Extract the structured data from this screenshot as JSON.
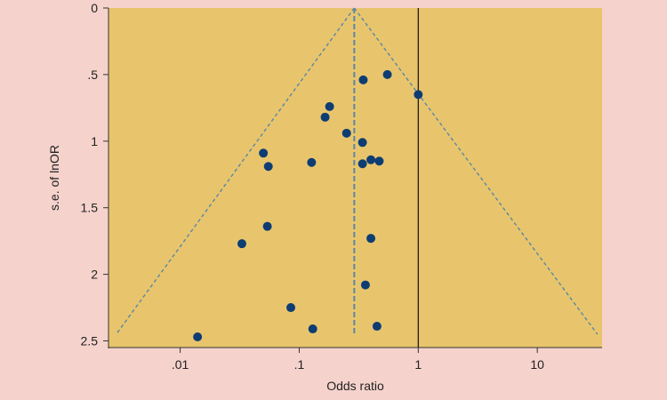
{
  "colors": {
    "page_background": "#f5d3cc",
    "plot_background": "#e8c56c",
    "marker": "#0d3d73",
    "funnel_line": "#5b87a6",
    "reference_line": "#111111",
    "axis": "#333333"
  },
  "chart_data": {
    "type": "scatter",
    "xlabel": "Odds ratio",
    "ylabel": "s.e. of lnOR",
    "x_scale": "log",
    "y_inverted": true,
    "xlim": [
      0.0025,
      35
    ],
    "ylim": [
      0,
      2.55
    ],
    "x_ticks": [
      {
        "value": 0.01,
        "label": ".01"
      },
      {
        "value": 0.1,
        "label": ".1"
      },
      {
        "value": 1,
        "label": "1"
      },
      {
        "value": 10,
        "label": "10"
      }
    ],
    "y_ticks": [
      {
        "value": 0,
        "label": "0"
      },
      {
        "value": 0.5,
        "label": ".5"
      },
      {
        "value": 1,
        "label": "1"
      },
      {
        "value": 1.5,
        "label": "1.5"
      },
      {
        "value": 2,
        "label": "2"
      },
      {
        "value": 2.5,
        "label": "2.5"
      }
    ],
    "grid": false,
    "legend": "none",
    "reference_line_x": 1,
    "pooled_estimate_x": 0.29,
    "funnel": {
      "apex": {
        "x": 0.29,
        "y": 0
      },
      "base_left": {
        "x": 0.0029,
        "y": 2.45
      },
      "base_right": {
        "x": 32,
        "y": 2.45
      }
    },
    "points": [
      {
        "x": 0.55,
        "y": 0.5
      },
      {
        "x": 0.345,
        "y": 0.54
      },
      {
        "x": 1.0,
        "y": 0.65
      },
      {
        "x": 0.18,
        "y": 0.74
      },
      {
        "x": 0.165,
        "y": 0.82
      },
      {
        "x": 0.25,
        "y": 0.94
      },
      {
        "x": 0.34,
        "y": 1.01
      },
      {
        "x": 0.05,
        "y": 1.09
      },
      {
        "x": 0.127,
        "y": 1.16
      },
      {
        "x": 0.055,
        "y": 1.19
      },
      {
        "x": 0.34,
        "y": 1.17
      },
      {
        "x": 0.4,
        "y": 1.14
      },
      {
        "x": 0.47,
        "y": 1.15
      },
      {
        "x": 0.054,
        "y": 1.64
      },
      {
        "x": 0.4,
        "y": 1.73
      },
      {
        "x": 0.033,
        "y": 1.77
      },
      {
        "x": 0.36,
        "y": 2.08
      },
      {
        "x": 0.085,
        "y": 2.25
      },
      {
        "x": 0.13,
        "y": 2.41
      },
      {
        "x": 0.45,
        "y": 2.39
      },
      {
        "x": 0.014,
        "y": 2.47
      }
    ]
  }
}
